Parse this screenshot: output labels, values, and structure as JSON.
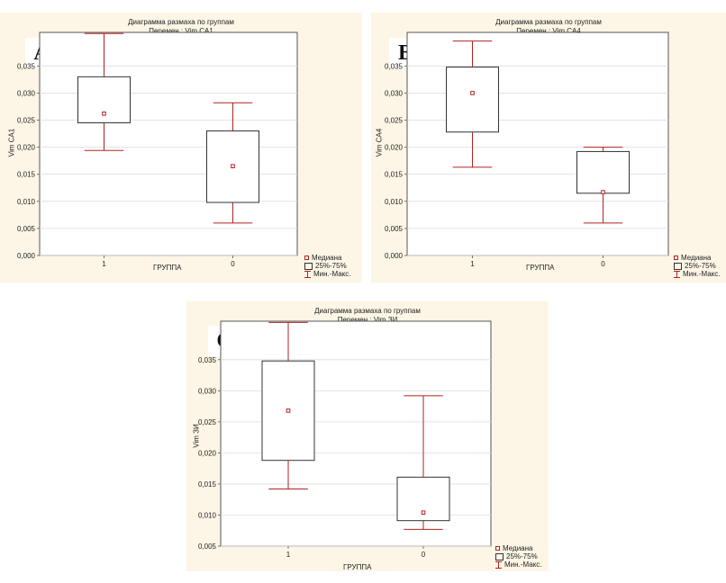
{
  "chart_data": [
    {
      "type": "boxplot",
      "panel_letter": "A",
      "title": "Диаграмма размаха по группам",
      "subtitle": "Перемен.: Vim CA1",
      "ylabel": "Vim CA1",
      "xlabel": "ГРУППА",
      "categories": [
        "1",
        "0"
      ],
      "ylim": [
        0.0,
        0.04
      ],
      "yticks": [
        0.0,
        0.005,
        0.01,
        0.015,
        0.02,
        0.025,
        0.03,
        0.035
      ],
      "ytick_labels": [
        "0,000",
        "0,005",
        "0,010",
        "0,015",
        "0,020",
        "0,025",
        "0,030",
        "0,035"
      ],
      "boxes": [
        {
          "category": "1",
          "min": 0.0194,
          "q1": 0.0245,
          "median": 0.0262,
          "q3": 0.033,
          "max": 0.041
        },
        {
          "category": "0",
          "min": 0.006,
          "q1": 0.0098,
          "median": 0.0165,
          "q3": 0.023,
          "max": 0.0282
        }
      ],
      "grid": true,
      "legend": [
        "Медиана",
        "25%-75%",
        "Мин.-Макс."
      ],
      "legend_position": "bottom-right"
    },
    {
      "type": "boxplot",
      "panel_letter": "B",
      "title": "Диаграмма размаха по группам",
      "subtitle": "Перемен.: Vim CA4",
      "ylabel": "Vim CA4",
      "xlabel": "ГРУППА",
      "categories": [
        "1",
        "0"
      ],
      "ylim": [
        0.0,
        0.04
      ],
      "yticks": [
        0.0,
        0.005,
        0.01,
        0.015,
        0.02,
        0.025,
        0.03,
        0.035
      ],
      "ytick_labels": [
        "0,000",
        "0,005",
        "0,010",
        "0,015",
        "0,020",
        "0,025",
        "0,030",
        "0,035"
      ],
      "boxes": [
        {
          "category": "1",
          "min": 0.0163,
          "q1": 0.0228,
          "median": 0.03,
          "q3": 0.0348,
          "max": 0.0396
        },
        {
          "category": "0",
          "min": 0.006,
          "q1": 0.0115,
          "median": 0.0117,
          "q3": 0.0192,
          "max": 0.02
        }
      ],
      "grid": true,
      "legend": [
        "Медиана",
        "25%-75%",
        "Мин.-Макс."
      ],
      "legend_position": "bottom-right"
    },
    {
      "type": "boxplot",
      "panel_letter": "C",
      "title": "Диаграмма размаха по группам",
      "subtitle": "Перемен.: Vim ЗИ",
      "ylabel": "Vim ЗИ",
      "xlabel": "ГРУППА",
      "categories": [
        "1",
        "0"
      ],
      "ylim": [
        0.005,
        0.04
      ],
      "yticks": [
        0.005,
        0.01,
        0.015,
        0.02,
        0.025,
        0.03,
        0.035
      ],
      "ytick_labels": [
        "0,005",
        "0,010",
        "0,015",
        "0,020",
        "0,025",
        "0,030",
        "0,035"
      ],
      "boxes": [
        {
          "category": "1",
          "min": 0.0142,
          "q1": 0.0188,
          "median": 0.0268,
          "q3": 0.0348,
          "max": 0.041
        },
        {
          "category": "0",
          "min": 0.0077,
          "q1": 0.0091,
          "median": 0.0104,
          "q3": 0.0161,
          "max": 0.0292
        }
      ],
      "grid": true,
      "legend": [
        "Медиана",
        "25%-75%",
        "Мин.-Макс."
      ],
      "legend_position": "bottom-right"
    }
  ],
  "colors": {
    "whisker": "#b22222",
    "box": "#333333",
    "grid": "#dddddd",
    "panel_bg": "#fdf6e6",
    "plot_bg": "#ffffff"
  }
}
